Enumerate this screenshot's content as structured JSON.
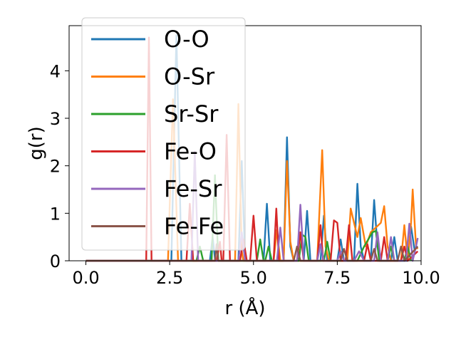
{
  "chart_data": {
    "type": "line",
    "xlabel": "r (Å)",
    "ylabel": "g(r)",
    "xlim": [
      -0.5,
      10.0
    ],
    "ylim": [
      0,
      4.95
    ],
    "xticks": [
      0.0,
      2.5,
      5.0,
      7.5,
      10.0
    ],
    "xtick_labels": [
      "0.0",
      "2.5",
      "5.0",
      "7.5",
      "10.0"
    ],
    "yticks": [
      0,
      1,
      2,
      3,
      4
    ],
    "ytick_labels": [
      "0",
      "1",
      "2",
      "3",
      "4"
    ],
    "grid": false,
    "legend_position": "top-left",
    "series": [
      {
        "name": "O-O",
        "color": "#1f77b4",
        "points": [
          [
            0,
            0
          ],
          [
            2.55,
            0
          ],
          [
            2.7,
            4.75
          ],
          [
            2.85,
            0
          ],
          [
            3.7,
            0
          ],
          [
            3.78,
            0.5
          ],
          [
            3.86,
            0
          ],
          [
            4.55,
            0
          ],
          [
            4.65,
            2.1
          ],
          [
            4.75,
            0
          ],
          [
            5.3,
            0
          ],
          [
            5.4,
            1.2
          ],
          [
            5.5,
            0
          ],
          [
            5.9,
            0
          ],
          [
            6.0,
            2.6
          ],
          [
            6.1,
            0.3
          ],
          [
            6.2,
            0
          ],
          [
            6.5,
            0
          ],
          [
            6.6,
            1.05
          ],
          [
            6.7,
            0
          ],
          [
            7.0,
            0
          ],
          [
            7.1,
            0.95
          ],
          [
            7.2,
            0
          ],
          [
            7.5,
            0
          ],
          [
            7.6,
            0.45
          ],
          [
            7.7,
            0
          ],
          [
            8.0,
            0
          ],
          [
            8.1,
            1.62
          ],
          [
            8.2,
            0.3
          ],
          [
            8.3,
            0
          ],
          [
            8.5,
            0
          ],
          [
            8.6,
            1.28
          ],
          [
            8.7,
            0.3
          ],
          [
            8.8,
            0
          ],
          [
            9.1,
            0
          ],
          [
            9.2,
            0.5
          ],
          [
            9.3,
            0
          ],
          [
            9.6,
            0
          ],
          [
            9.7,
            0.72
          ],
          [
            9.8,
            0.25
          ],
          [
            9.9,
            0.3
          ]
        ]
      },
      {
        "name": "O-Sr",
        "color": "#ff7f0e",
        "points": [
          [
            0,
            0
          ],
          [
            2.45,
            0
          ],
          [
            2.6,
            3.4
          ],
          [
            2.75,
            0
          ],
          [
            4.45,
            0
          ],
          [
            4.55,
            3.3
          ],
          [
            4.65,
            0.2
          ],
          [
            4.7,
            0
          ],
          [
            5.6,
            0
          ],
          [
            5.7,
            0.65
          ],
          [
            5.8,
            0
          ],
          [
            5.9,
            0
          ],
          [
            6.0,
            2.1
          ],
          [
            6.1,
            0.4
          ],
          [
            6.2,
            0
          ],
          [
            6.9,
            0
          ],
          [
            7.05,
            2.33
          ],
          [
            7.15,
            0.3
          ],
          [
            7.25,
            0
          ],
          [
            7.8,
            0
          ],
          [
            7.9,
            1.1
          ],
          [
            8.0,
            0.8
          ],
          [
            8.1,
            0.5
          ],
          [
            8.2,
            0.9
          ],
          [
            8.35,
            0.3
          ],
          [
            8.5,
            0.6
          ],
          [
            8.8,
            0.8
          ],
          [
            8.9,
            1.15
          ],
          [
            9.0,
            0.3
          ],
          [
            9.1,
            0
          ],
          [
            9.4,
            0
          ],
          [
            9.5,
            0.75
          ],
          [
            9.6,
            0
          ],
          [
            9.7,
            0.8
          ],
          [
            9.75,
            1.5
          ],
          [
            9.85,
            0.3
          ],
          [
            9.9,
            0.25
          ]
        ]
      },
      {
        "name": "Sr-Sr",
        "color": "#2ca02c",
        "points": [
          [
            0,
            0
          ],
          [
            3.3,
            0
          ],
          [
            3.4,
            0.3
          ],
          [
            3.5,
            0
          ],
          [
            3.75,
            0
          ],
          [
            3.85,
            1.8
          ],
          [
            3.95,
            0
          ],
          [
            5.1,
            0
          ],
          [
            5.2,
            0.45
          ],
          [
            5.3,
            0
          ],
          [
            5.35,
            0
          ],
          [
            5.45,
            0.3
          ],
          [
            5.55,
            0
          ],
          [
            6.35,
            0
          ],
          [
            6.45,
            0.55
          ],
          [
            6.55,
            0.5
          ],
          [
            6.65,
            0
          ],
          [
            7.1,
            0
          ],
          [
            7.2,
            0.4
          ],
          [
            7.3,
            0
          ],
          [
            8.1,
            0
          ],
          [
            8.3,
            0.3
          ],
          [
            8.55,
            0.6
          ],
          [
            8.65,
            0.63
          ],
          [
            8.75,
            0
          ],
          [
            9.0,
            0
          ],
          [
            9.1,
            0.3
          ],
          [
            9.2,
            0
          ],
          [
            9.5,
            0
          ],
          [
            9.6,
            0.3
          ],
          [
            9.7,
            0
          ]
        ]
      },
      {
        "name": "Fe-O",
        "color": "#d62728",
        "points": [
          [
            0,
            0
          ],
          [
            1.8,
            0
          ],
          [
            1.88,
            4.7
          ],
          [
            1.96,
            0
          ],
          [
            3.0,
            0
          ],
          [
            3.1,
            1.2
          ],
          [
            3.2,
            0
          ],
          [
            3.9,
            0
          ],
          [
            4.0,
            0.4
          ],
          [
            4.05,
            0
          ],
          [
            4.1,
            0
          ],
          [
            4.2,
            2.65
          ],
          [
            4.3,
            0
          ],
          [
            4.6,
            0
          ],
          [
            4.7,
            0.45
          ],
          [
            4.8,
            0
          ],
          [
            4.9,
            0
          ],
          [
            5.0,
            0.95
          ],
          [
            5.1,
            0
          ],
          [
            5.6,
            0
          ],
          [
            5.68,
            1.1
          ],
          [
            5.76,
            0
          ],
          [
            6.3,
            0
          ],
          [
            6.4,
            0.6
          ],
          [
            6.5,
            0
          ],
          [
            6.9,
            0
          ],
          [
            7.0,
            0.75
          ],
          [
            7.08,
            0
          ],
          [
            7.3,
            0
          ],
          [
            7.4,
            0.85
          ],
          [
            7.5,
            0.8
          ],
          [
            7.6,
            0
          ],
          [
            7.75,
            0
          ],
          [
            7.85,
            0.75
          ],
          [
            7.95,
            0
          ],
          [
            8.3,
            0
          ],
          [
            8.4,
            0.35
          ],
          [
            8.5,
            0
          ],
          [
            8.8,
            0
          ],
          [
            8.9,
            0.5
          ],
          [
            9.0,
            0
          ],
          [
            9.4,
            0
          ],
          [
            9.5,
            0.3
          ],
          [
            9.6,
            0
          ],
          [
            9.9,
            0.2
          ]
        ]
      },
      {
        "name": "Fe-Sr",
        "color": "#9467bd",
        "points": [
          [
            0,
            0
          ],
          [
            3.15,
            0
          ],
          [
            3.25,
            2.3
          ],
          [
            3.35,
            0
          ],
          [
            4.55,
            0
          ],
          [
            4.65,
            0.6
          ],
          [
            4.75,
            0
          ],
          [
            5.7,
            0
          ],
          [
            5.8,
            0.7
          ],
          [
            5.9,
            0
          ],
          [
            6.3,
            0
          ],
          [
            6.4,
            1.18
          ],
          [
            6.5,
            0
          ],
          [
            6.9,
            0
          ],
          [
            7.0,
            0.35
          ],
          [
            7.1,
            0
          ],
          [
            7.5,
            0
          ],
          [
            7.6,
            0.2
          ],
          [
            7.7,
            0
          ],
          [
            8.0,
            0
          ],
          [
            8.15,
            0.2
          ],
          [
            8.3,
            0
          ],
          [
            8.6,
            0
          ],
          [
            8.7,
            0.6
          ],
          [
            8.8,
            0
          ],
          [
            9.0,
            0
          ],
          [
            9.1,
            0.5
          ],
          [
            9.2,
            0
          ],
          [
            9.55,
            0
          ],
          [
            9.65,
            0.78
          ],
          [
            9.75,
            0
          ],
          [
            9.85,
            0.3
          ],
          [
            9.9,
            0.48
          ]
        ]
      },
      {
        "name": "Fe-Fe",
        "color": "#8c564b",
        "points": [
          [
            0,
            0
          ],
          [
            3.85,
            0
          ],
          [
            3.9,
            0.35
          ],
          [
            3.95,
            0
          ],
          [
            6.2,
            0
          ],
          [
            6.3,
            0.3
          ],
          [
            6.4,
            0
          ],
          [
            7.6,
            0
          ],
          [
            7.7,
            0.25
          ],
          [
            7.8,
            0
          ],
          [
            8.5,
            0
          ],
          [
            8.6,
            0.25
          ],
          [
            8.7,
            0
          ],
          [
            9.3,
            0
          ],
          [
            9.4,
            0.3
          ],
          [
            9.5,
            0
          ],
          [
            9.9,
            0.3
          ]
        ]
      }
    ]
  }
}
